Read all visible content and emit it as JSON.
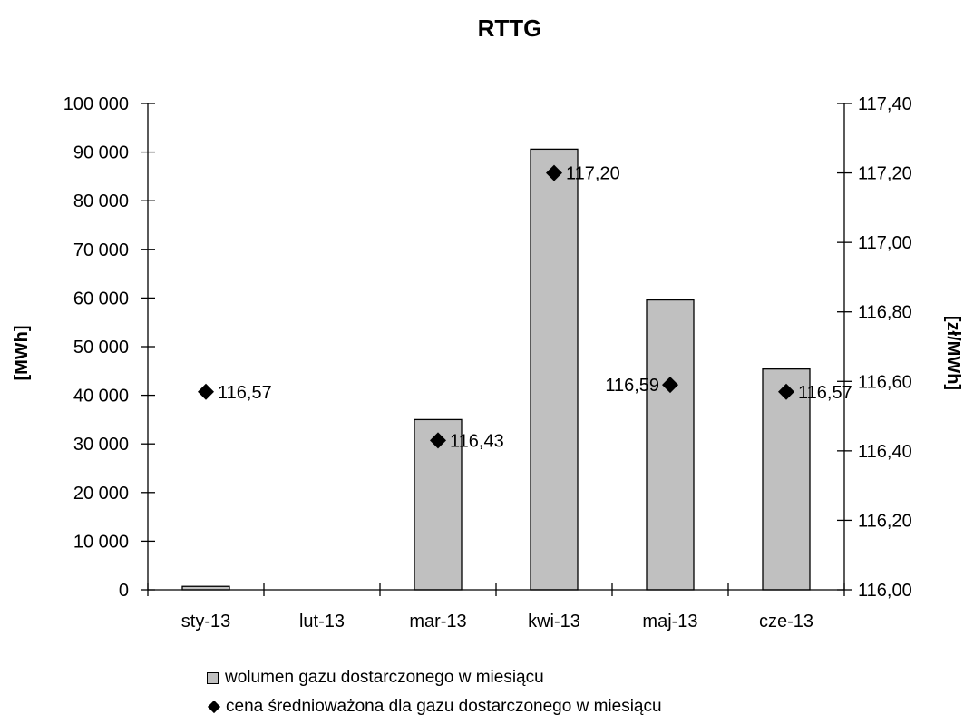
{
  "chart_data": {
    "type": "bar",
    "title": "RTTG",
    "categories": [
      "sty-13",
      "lut-13",
      "mar-13",
      "kwi-13",
      "maj-13",
      "cze-13"
    ],
    "ylabel": "[MWh]",
    "y2label": "[zł/MWh]",
    "ylim": [
      0,
      100000
    ],
    "y2lim": [
      116.0,
      117.4
    ],
    "yticks": [
      "0",
      "10 000",
      "20 000",
      "30 000",
      "40 000",
      "50 000",
      "60 000",
      "70 000",
      "80 000",
      "90 000",
      "100 000"
    ],
    "y2ticks": [
      "116,00",
      "116,20",
      "116,40",
      "116,60",
      "116,80",
      "117,00",
      "117,20",
      "117,40"
    ],
    "grid": false,
    "legend_position": "bottom",
    "series": [
      {
        "name": "wolumen gazu dostarczonego w miesiącu",
        "type": "bar",
        "axis": "left",
        "color": "#c0c0c0",
        "values": [
          700,
          0,
          35000,
          90600,
          59600,
          45400
        ]
      },
      {
        "name": "cena średnioważona dla gazu dostarczonego w miesiącu",
        "type": "scatter",
        "axis": "right",
        "marker": "diamond",
        "color": "#000000",
        "values": [
          116.57,
          null,
          116.43,
          117.2,
          116.59,
          116.57
        ],
        "labels": [
          "116,57",
          "",
          "116,43",
          "117,20",
          "116,59",
          "116,57"
        ]
      }
    ]
  }
}
